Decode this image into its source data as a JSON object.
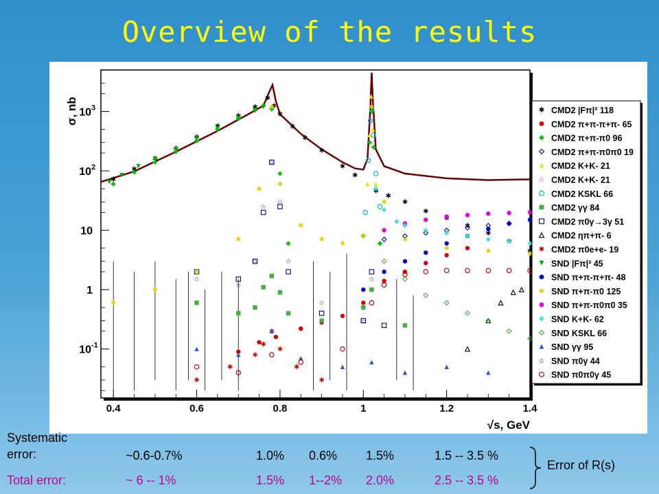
{
  "slide_title": "Overview of the results",
  "chart_data": {
    "type": "scatter",
    "title": "",
    "xlabel": "√s, GeV",
    "ylabel": "σ, nb",
    "x_range": [
      0.37,
      1.4
    ],
    "y_range": [
      0.015,
      5000
    ],
    "y_scale": "log",
    "grid": false,
    "legend_position": "right",
    "x_ticks": [
      "0.4",
      "0.6",
      "0.8",
      "1",
      "1.2",
      "1.4"
    ],
    "y_ticks": [
      {
        "value": 1000,
        "label": "10",
        "sup": "3"
      },
      {
        "value": 100,
        "label": "10",
        "sup": "2"
      },
      {
        "value": 10,
        "label": "10",
        "sup": ""
      },
      {
        "value": 1,
        "label": "1",
        "sup": ""
      },
      {
        "value": 0.1,
        "label": "10",
        "sup": "-1"
      }
    ],
    "series": [
      {
        "name": "CMD2 |Fπ|² 118",
        "marker": "star",
        "color": "#000000",
        "x": [
          0.4,
          0.45,
          0.5,
          0.55,
          0.6,
          0.65,
          0.7,
          0.74,
          0.77,
          0.785,
          0.8,
          0.83,
          0.86,
          0.9,
          0.95,
          0.98,
          1.03,
          1.06,
          1.1,
          1.15,
          1.2,
          1.25,
          1.3,
          1.35,
          1.4
        ],
        "y": [
          72,
          108,
          160,
          240,
          370,
          570,
          850,
          1200,
          1700,
          1250,
          900,
          560,
          360,
          220,
          120,
          85,
          46,
          38,
          30,
          21,
          16,
          12,
          9,
          6.5,
          4.5
        ]
      },
      {
        "name": "CMD2 π+π-π+π- 65",
        "marker": "circle-filled",
        "color": "#d40000",
        "x": [
          0.7,
          0.75,
          0.79,
          0.85,
          0.9,
          0.95,
          1.0,
          1.02,
          1.05,
          1.1,
          1.15,
          1.2,
          1.25
        ],
        "y": [
          0.09,
          0.13,
          0.16,
          0.22,
          0.28,
          0.36,
          0.6,
          1.0,
          1.4,
          2.0,
          2.8,
          3.8,
          5.0
        ]
      },
      {
        "name": "CMD2 π+π-π0 96",
        "marker": "cross-filled",
        "color": "#00c000",
        "x": [
          0.4,
          0.45,
          0.5,
          0.55,
          0.6,
          0.65,
          0.7,
          0.74,
          0.76,
          0.78,
          0.8,
          0.82,
          1.0,
          1.015,
          1.02,
          1.025,
          1.04
        ],
        "y": [
          60,
          95,
          140,
          210,
          320,
          500,
          760,
          1050,
          1250,
          1100,
          90,
          6,
          8,
          300,
          1000,
          250,
          6
        ]
      },
      {
        "name": "CMD2 π+π-π0π0 19",
        "marker": "diamond-open",
        "color": "#0000c0",
        "x": [
          1.05,
          1.1,
          1.15,
          1.2,
          1.25,
          1.3,
          1.35
        ],
        "y": [
          7,
          8,
          9,
          10,
          11,
          12,
          13
        ]
      },
      {
        "name": "CMD2 K+K- 21",
        "marker": "triangle-filled",
        "color": "#f0e000",
        "x": [
          1.01,
          1.015,
          1.019,
          1.023,
          1.03
        ],
        "y": [
          60,
          400,
          1800,
          500,
          60
        ]
      },
      {
        "name": "CMD2 K+K- 21",
        "marker": "star-open",
        "color": "#d000d0",
        "x": [
          1.012,
          1.017,
          1.02,
          1.025
        ],
        "y": [
          150,
          700,
          1400,
          300
        ]
      },
      {
        "name": "CMD2 KSKL 66",
        "marker": "circle-open",
        "color": "#00c0c0",
        "x": [
          1.005,
          1.012,
          1.017,
          1.02,
          1.024,
          1.03,
          1.04
        ],
        "y": [
          20,
          150,
          700,
          1100,
          400,
          90,
          25
        ]
      },
      {
        "name": "CMD2 γγ 84",
        "marker": "square-filled",
        "color": "#40b040",
        "x": [
          0.6,
          0.7,
          0.74,
          0.76,
          0.78,
          0.8,
          0.82,
          0.9,
          1.0,
          1.02,
          1.1
        ],
        "y": [
          0.6,
          0.4,
          0.5,
          1.1,
          1.7,
          0.9,
          0.4,
          0.3,
          0.5,
          1.0,
          0.25
        ]
      },
      {
        "name": "CMD2 π0γ→3γ 51",
        "marker": "square-open",
        "color": "#0000a0",
        "x": [
          0.6,
          0.7,
          0.74,
          0.76,
          0.78,
          0.8,
          0.82,
          0.9,
          1.0,
          1.02,
          1.05
        ],
        "y": [
          2.0,
          1.5,
          3,
          20,
          140,
          25,
          2,
          0.4,
          0.3,
          2,
          0.25
        ]
      },
      {
        "name": "CMD2 ηπ+π- 6",
        "marker": "triangle-open",
        "color": "#000000",
        "x": [
          1.25,
          1.3,
          1.33,
          1.36,
          1.38
        ],
        "y": [
          0.1,
          0.3,
          0.6,
          0.9,
          1.0
        ]
      },
      {
        "name": "CMD2 π0e+e- 19",
        "marker": "star-small",
        "color": "#d00000",
        "x": [
          0.6,
          0.68,
          0.74,
          0.76,
          0.78,
          0.8,
          0.84,
          0.9
        ],
        "y": [
          0.03,
          0.05,
          0.08,
          0.12,
          0.2,
          0.1,
          0.05,
          0.03
        ]
      },
      {
        "name": "SND |Fπ|² 45",
        "marker": "triangle-down-filled",
        "color": "#00b000",
        "x": [
          0.39,
          0.42,
          0.46,
          0.5,
          0.55,
          0.6,
          0.65,
          0.7,
          0.74,
          0.76
        ],
        "y": [
          65,
          85,
          120,
          160,
          230,
          350,
          520,
          780,
          1050,
          1200
        ]
      },
      {
        "name": "SND π+π-π+π- 48",
        "marker": "circle-filled",
        "color": "#0000d0",
        "x": [
          1.0,
          1.05,
          1.1,
          1.15,
          1.2,
          1.25,
          1.3,
          1.35,
          1.4
        ],
        "y": [
          1.0,
          2.0,
          3.0,
          4.2,
          6.0,
          8.0,
          10.5,
          13.0,
          15.0
        ]
      },
      {
        "name": "SND π+π-π0 125",
        "marker": "star-small",
        "color": "#e0d000",
        "x": [
          0.4,
          0.5,
          0.6,
          0.7,
          0.75,
          0.78,
          0.8,
          0.85,
          0.9,
          0.95,
          1.0,
          1.02,
          1.05,
          1.1,
          1.2,
          1.3,
          1.4
        ],
        "y": [
          0.6,
          1.0,
          2.0,
          7,
          50,
          1200,
          60,
          12,
          7,
          6,
          8,
          1200,
          30,
          7,
          5,
          4.5,
          4
        ]
      },
      {
        "name": "SND π+π-π0π0 35",
        "marker": "circle-filled",
        "color": "#e000e0",
        "x": [
          1.05,
          1.1,
          1.15,
          1.2,
          1.25,
          1.3,
          1.35,
          1.4
        ],
        "y": [
          10,
          13,
          15,
          17,
          18,
          19,
          19.5,
          20
        ]
      },
      {
        "name": "SND K+K- 62",
        "marker": "cross-filled",
        "color": "#40e0e0",
        "x": [
          1.03,
          1.05,
          1.08,
          1.1,
          1.15,
          1.2,
          1.25,
          1.3,
          1.35,
          1.4
        ],
        "y": [
          50,
          22,
          14,
          12,
          10,
          9,
          8,
          7,
          6.5,
          6
        ]
      },
      {
        "name": "SND KSKL 66",
        "marker": "diamond-open",
        "color": "#40b040",
        "x": [
          1.05,
          1.1,
          1.15,
          1.2,
          1.25,
          1.3,
          1.35,
          1.4
        ],
        "y": [
          3.0,
          1.5,
          0.8,
          0.6,
          0.4,
          0.3,
          0.2,
          0.15
        ]
      },
      {
        "name": "SND γγ 95",
        "marker": "triangle-filled",
        "color": "#3050d0",
        "x": [
          0.6,
          0.7,
          0.78,
          0.85,
          0.95,
          1.02,
          1.1,
          1.2,
          1.3
        ],
        "y": [
          0.1,
          0.08,
          0.2,
          0.07,
          0.05,
          0.06,
          0.04,
          0.05,
          0.04
        ]
      },
      {
        "name": "SND π0γ 44",
        "marker": "star-open",
        "color": "#000000",
        "x": [
          0.6,
          0.7,
          0.74,
          0.76,
          0.78,
          0.8,
          0.82,
          0.9,
          1.0,
          1.02
        ],
        "y": [
          1.5,
          1.2,
          3,
          25,
          140,
          30,
          3,
          0.6,
          0.3,
          1.5
        ]
      },
      {
        "name": "SND π0π0γ 45",
        "marker": "circle-open",
        "color": "#d00000",
        "x": [
          0.6,
          0.7,
          0.78,
          0.85,
          0.95,
          1.02,
          1.05,
          1.1,
          1.15,
          1.2,
          1.25,
          1.3,
          1.35,
          1.4
        ],
        "y": [
          0.05,
          0.04,
          0.08,
          0.06,
          0.1,
          0.6,
          1.2,
          1.8,
          2.0,
          2.1,
          2.1,
          2.1,
          2.1,
          2.1
        ]
      }
    ],
    "curve": {
      "name": "",
      "x": [
        0.37,
        0.45,
        0.55,
        0.65,
        0.72,
        0.76,
        0.775,
        0.782,
        0.79,
        0.8,
        0.85,
        0.9,
        0.95,
        0.98,
        1.0,
        1.01,
        1.017,
        1.02,
        1.023,
        1.03,
        1.05,
        1.1,
        1.2,
        1.3,
        1.4
      ],
      "y": [
        65,
        98,
        210,
        470,
        870,
        1250,
        2200,
        2800,
        1500,
        900,
        420,
        230,
        140,
        110,
        105,
        160,
        1200,
        4500,
        1500,
        230,
        120,
        90,
        75,
        70,
        72
      ]
    }
  },
  "errors": {
    "systematic_label": "Systematic error:",
    "total_label": "Total error:",
    "systematic_values": [
      "~0.6-0.7%",
      "1.0%",
      "0.6%",
      "1.5%",
      "1.5 -- 3.5 %"
    ],
    "total_values": [
      "~  6 -- 1%",
      "1.5%",
      "1--2%",
      "2.0%",
      "2.5 -- 3.5 %"
    ],
    "bracket_label": "Error of R(s)"
  }
}
